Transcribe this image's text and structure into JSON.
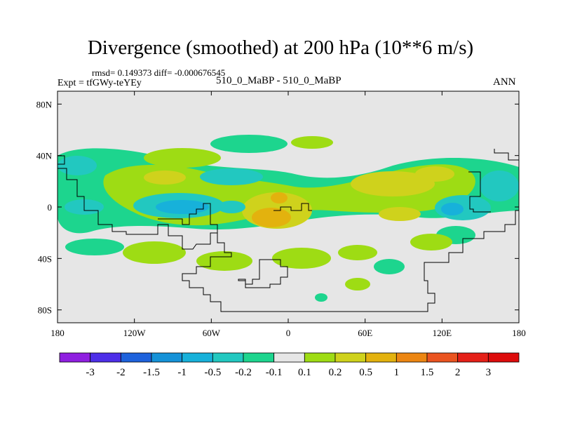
{
  "chart_data": {
    "type": "heatmap",
    "title": "Divergence (smoothed) at 200 hPa (10**6 m/s)",
    "rmsd_line": "rmsd= 0.149373  diff= -0.000676545",
    "experiment": "Expt = tfGWy-teYEy",
    "comparison": "510_0_MaBP - 510_0_MaBP",
    "period": "ANN",
    "x_ticks": [
      {
        "value": -180,
        "label": "180"
      },
      {
        "value": -120,
        "label": "120W"
      },
      {
        "value": -60,
        "label": "60W"
      },
      {
        "value": 0,
        "label": "0"
      },
      {
        "value": 60,
        "label": "60E"
      },
      {
        "value": 120,
        "label": "120E"
      },
      {
        "value": 180,
        "label": "180"
      }
    ],
    "y_ticks": [
      {
        "value": 80,
        "label": "80N"
      },
      {
        "value": 40,
        "label": "40N"
      },
      {
        "value": 0,
        "label": "0"
      },
      {
        "value": -40,
        "label": "40S"
      },
      {
        "value": -80,
        "label": "80S"
      }
    ],
    "xlim": [
      -180,
      180
    ],
    "ylim": [
      -90,
      90
    ],
    "colorbar": {
      "labels": [
        "-3",
        "-2",
        "-1.5",
        "-1",
        "-0.5",
        "-0.2",
        "-0.1",
        "0.1",
        "0.2",
        "0.5",
        "1",
        "1.5",
        "2",
        "3"
      ],
      "colors": [
        "#8f1fe0",
        "#4d2ee8",
        "#1e62dc",
        "#1592d8",
        "#17b1da",
        "#22c8c0",
        "#1dd58e",
        "#e6e6e6",
        "#9edc14",
        "#cfd21c",
        "#e3b20e",
        "#ec8612",
        "#ea5420",
        "#e52018",
        "#dd0c0c"
      ]
    },
    "fields": [
      {
        "name": "westerly-positive-band",
        "level": "0.1 to 0.2",
        "color": "#9edc14"
      },
      {
        "name": "southern-positive-cells",
        "level": "0.1 to 0.2",
        "color": "#9edc14"
      },
      {
        "name": "midlatitude-negative-band",
        "level": "-0.2 to -0.1",
        "color": "#1dd58e"
      },
      {
        "name": "tropical-negative-core",
        "level": "-1 to -0.5",
        "color": "#17b1da"
      },
      {
        "name": "tropical-positive-core",
        "level": "0.5 to 1",
        "color": "#e3b20e"
      },
      {
        "name": "north-atlantic-negative",
        "level": "-0.5 to -0.2",
        "color": "#22c8c0"
      }
    ]
  }
}
